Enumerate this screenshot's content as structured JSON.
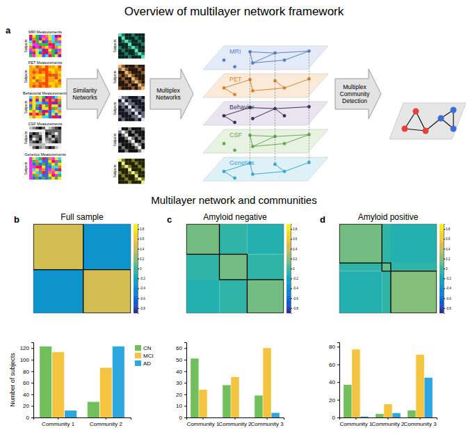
{
  "figure": {
    "title": "Overview of multilayer network framework",
    "section_title": "Multilayer network and communities"
  },
  "diagram": {
    "label": "a",
    "axis_label": "Subjects",
    "measurements": [
      "MRI Measurements",
      "PET Measurements",
      "Behavioral Measurements",
      "CSF Measurements",
      "Genetics Measurements"
    ],
    "steps": [
      "Similarity Networks",
      "Multiplex Networks",
      "Multiplex Community Detection"
    ],
    "layers": [
      "MRI",
      "PET",
      "Behavior",
      "CSF",
      "Genetics"
    ]
  },
  "chart_data": [
    {
      "type": "heatmap",
      "title": "Full sample",
      "annotations": [
        "b"
      ],
      "tick_labels": false,
      "sizes": [
        248,
        236
      ],
      "cells": [
        [
          0.45,
          -0.35
        ],
        [
          -0.35,
          0.45
        ]
      ],
      "colorbar": {
        "range": [
          -0.9,
          0.9
        ],
        "ticks": [
          -0.8,
          -0.6,
          -0.4,
          -0.2,
          0,
          0.2,
          0.4,
          0.6,
          0.8
        ]
      }
    },
    {
      "type": "heatmap",
      "title": "Amyloid negative",
      "annotations": [
        "c"
      ],
      "tick_labels": false,
      "sizes": [
        75,
        63,
        83
      ],
      "cells": [
        [
          0.15,
          -0.05,
          -0.1
        ],
        [
          -0.05,
          0.15,
          -0.05
        ],
        [
          -0.1,
          -0.05,
          0.15
        ]
      ],
      "colorbar": {
        "range": [
          -0.9,
          0.9
        ],
        "ticks": [
          -0.8,
          -0.6,
          -0.4,
          -0.2,
          0,
          0.2,
          0.4,
          0.6,
          0.8
        ]
      }
    },
    {
      "type": "heatmap",
      "title": "Amyloid positive",
      "annotations": [
        "d"
      ],
      "tick_labels": false,
      "sizes": [
        115,
        24,
        124
      ],
      "cells": [
        [
          0.15,
          -0.05,
          -0.1
        ],
        [
          -0.05,
          0.1,
          -0.05
        ],
        [
          -0.1,
          -0.05,
          0.2
        ]
      ],
      "colorbar": {
        "range": [
          -0.9,
          0.9
        ],
        "ticks": [
          -0.8,
          -0.6,
          -0.4,
          -0.2,
          0,
          0.2,
          0.4,
          0.6,
          0.8
        ]
      }
    },
    {
      "type": "bar",
      "y_label": "Number of subjects",
      "legend": "top-right",
      "categories": [
        "Community 1",
        "Community 2"
      ],
      "series": [
        {
          "name": "CN",
          "color": "#72c05b",
          "values": [
            123,
            27
          ]
        },
        {
          "name": "MCI",
          "color": "#f4c340",
          "values": [
            113,
            86
          ]
        },
        {
          "name": "AD",
          "color": "#2ea6df",
          "values": [
            12,
            123
          ]
        }
      ],
      "ylim": [
        0,
        130
      ],
      "yticks": [
        0,
        20,
        40,
        60,
        80,
        100,
        120
      ]
    },
    {
      "type": "bar",
      "categories": [
        "Community 1",
        "Community 2",
        "Community 3"
      ],
      "series": [
        {
          "color": "#72c05b",
          "values": [
            51,
            28,
            19
          ]
        },
        {
          "color": "#f4c340",
          "values": [
            24,
            35,
            60
          ]
        },
        {
          "color": "#2ea6df",
          "values": [
            0,
            0,
            4
          ]
        }
      ],
      "ylim": [
        0,
        65
      ],
      "yticks": [
        0,
        10,
        20,
        30,
        40,
        50,
        60
      ]
    },
    {
      "type": "bar",
      "categories": [
        "Community 1",
        "Community 2",
        "Community 3"
      ],
      "series": [
        {
          "color": "#72c05b",
          "values": [
            37,
            4,
            8
          ]
        },
        {
          "color": "#f4c340",
          "values": [
            77,
            15,
            71
          ]
        },
        {
          "color": "#2ea6df",
          "values": [
            1,
            5,
            45
          ]
        }
      ],
      "ylim": [
        0,
        85
      ],
      "yticks": [
        0,
        20,
        40,
        60,
        80
      ]
    }
  ]
}
